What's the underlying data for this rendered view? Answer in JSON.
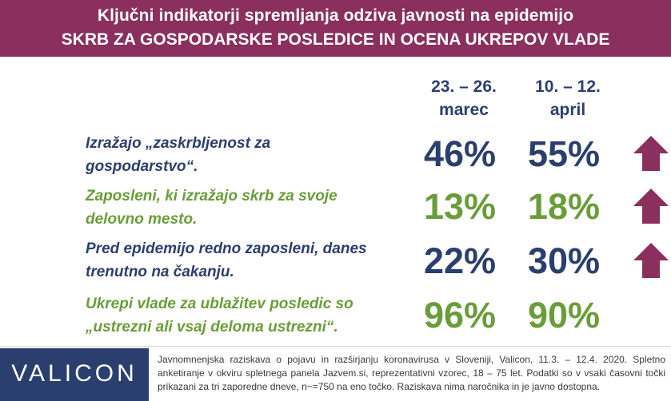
{
  "header": {
    "line1": "Ključni indikatorji spremljanja odziva javnosti na epidemijo",
    "line2": "SKRB ZA GOSPODARSKE POSLEDICE IN OCENA UKREPOV VLADE"
  },
  "columns": [
    {
      "line1": "23. – 26.",
      "line2": "marec"
    },
    {
      "line1": "10. – 12.",
      "line2": "april"
    }
  ],
  "rows": [
    {
      "line1": "Izražajo „zaskrbljenost za",
      "line2": "gospodarstvo“.",
      "v1": "46%",
      "v2": "55%",
      "trend": "up-arrow-icon"
    },
    {
      "line1": "Zaposleni, ki izražajo skrb za svoje",
      "line2": "delovno mesto.",
      "v1": "13%",
      "v2": "18%",
      "trend": "up-arrow-icon"
    },
    {
      "line1": "Pred epidemijo redno zaposleni, danes",
      "line2": "trenutno na čakanju.",
      "v1": "22%",
      "v2": "30%",
      "trend": "up-arrow-icon"
    },
    {
      "line1": "Ukrepi vlade za ublažitev posledic so",
      "line2": "„ustrezni ali vsaj deloma ustrezni“.",
      "v1": "96%",
      "v2": "90%",
      "trend": null
    }
  ],
  "footer": {
    "logo": "VALICON",
    "note": "Javnomnenjska raziskava o pojavu in razširjanju koronavirusa v Sloveniji, Valicon, 11.3. – 12.4. 2020. Spletno anketiranje v okviru spletnega panela Jazvem.si, reprezentativni vzorec, 18 – 75 let. Podatki so v vsaki časovni točki prikazani za tri zaporedne dneve, n~=750 na eno točko. Raziskava nima naročnika in je javno dostopna."
  },
  "colors": {
    "header_bg": "#8a2f5e",
    "navy": "#2b3f6e",
    "green": "#6a9d3a",
    "arrow": "#8a2f5e"
  }
}
